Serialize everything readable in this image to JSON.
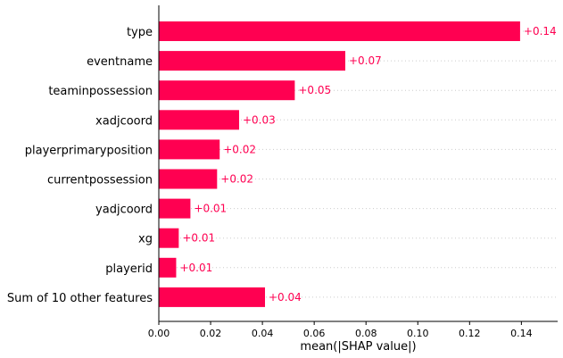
{
  "chart_data": {
    "type": "bar",
    "orientation": "horizontal",
    "xlabel": "mean(|SHAP value|)",
    "ylabel": "",
    "title": "",
    "xlim": [
      0,
      0.154
    ],
    "xticks": [
      "0.00",
      "0.02",
      "0.04",
      "0.06",
      "0.08",
      "0.10",
      "0.12",
      "0.14"
    ],
    "grid": "dotted horizontal guides",
    "bar_color": "#ff0051",
    "categories": [
      "type",
      "eventname",
      "teaminpossession",
      "xadjcoord",
      "playerprimaryposition",
      "currentpossession",
      "yadjcoord",
      "xg",
      "playerid",
      "Sum of 10 other features"
    ],
    "values": [
      0.1395,
      0.072,
      0.0525,
      0.031,
      0.0235,
      0.0225,
      0.0122,
      0.0077,
      0.0067,
      0.041
    ],
    "value_labels": [
      "+0.14",
      "+0.07",
      "+0.05",
      "+0.03",
      "+0.02",
      "+0.02",
      "+0.01",
      "+0.01",
      "+0.01",
      "+0.04"
    ]
  }
}
